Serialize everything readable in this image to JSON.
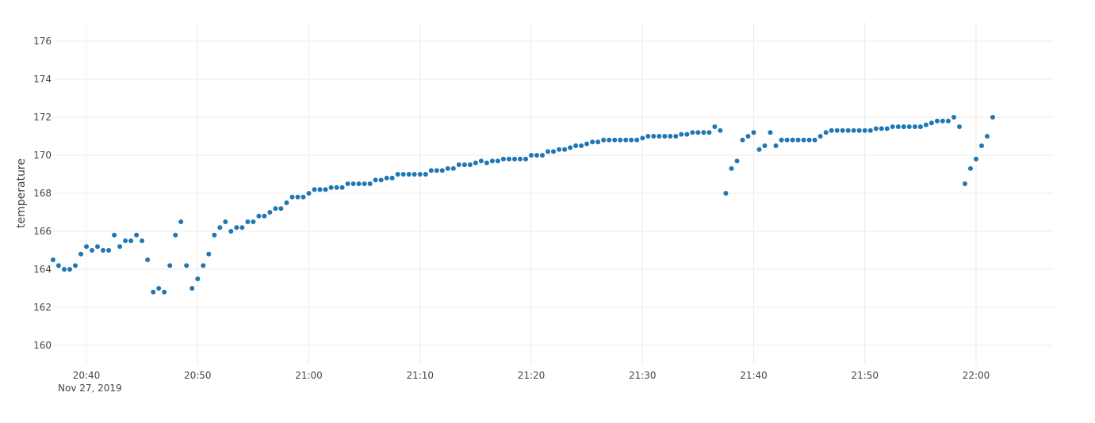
{
  "chart_data": {
    "type": "scatter",
    "title": "",
    "xlabel": "",
    "ylabel": "temperature",
    "x_unit": "minutes",
    "x_date_label": "Nov 27, 2019",
    "xlim": [
      "20:36",
      "22:07"
    ],
    "ylim": [
      159,
      177
    ],
    "x_ticks": [
      "20:40",
      "20:50",
      "21:00",
      "21:10",
      "21:20",
      "21:30",
      "21:40",
      "21:50",
      "22:00"
    ],
    "y_ticks": [
      160,
      162,
      164,
      166,
      168,
      170,
      172,
      174,
      176
    ],
    "grid": true,
    "legend": "none",
    "marker_color": "#1f77b4",
    "series": [
      {
        "x": [
          "20:37:00",
          "20:37:30",
          "20:38:00",
          "20:38:30",
          "20:39:00",
          "20:39:30",
          "20:40:00",
          "20:40:30",
          "20:41:00",
          "20:41:30",
          "20:42:00",
          "20:42:30",
          "20:43:00",
          "20:43:30",
          "20:44:00",
          "20:44:30",
          "20:45:00",
          "20:45:30",
          "20:46:00",
          "20:46:30",
          "20:47:00",
          "20:47:30",
          "20:48:00",
          "20:48:30",
          "20:49:00",
          "20:49:30",
          "20:50:00",
          "20:50:30",
          "20:51:00",
          "20:51:30",
          "20:52:00",
          "20:52:30",
          "20:53:00",
          "20:53:30",
          "20:54:00",
          "20:54:30",
          "20:55:00",
          "20:55:30",
          "20:56:00",
          "20:56:30",
          "20:57:00",
          "20:57:30",
          "20:58:00",
          "20:58:30",
          "20:59:00",
          "20:59:30",
          "21:00:00",
          "21:00:30",
          "21:01:00",
          "21:01:30",
          "21:02:00",
          "21:02:30",
          "21:03:00",
          "21:03:30",
          "21:04:00",
          "21:04:30",
          "21:05:00",
          "21:05:30",
          "21:06:00",
          "21:06:30",
          "21:07:00",
          "21:07:30",
          "21:08:00",
          "21:08:30",
          "21:09:00",
          "21:09:30",
          "21:10:00",
          "21:10:30",
          "21:11:00",
          "21:11:30",
          "21:12:00",
          "21:12:30",
          "21:13:00",
          "21:13:30",
          "21:14:00",
          "21:14:30",
          "21:15:00",
          "21:15:30",
          "21:16:00",
          "21:16:30",
          "21:17:00",
          "21:17:30",
          "21:18:00",
          "21:18:30",
          "21:19:00",
          "21:19:30",
          "21:20:00",
          "21:20:30",
          "21:21:00",
          "21:21:30",
          "21:22:00",
          "21:22:30",
          "21:23:00",
          "21:23:30",
          "21:24:00",
          "21:24:30",
          "21:25:00",
          "21:25:30",
          "21:26:00",
          "21:26:30",
          "21:27:00",
          "21:27:30",
          "21:28:00",
          "21:28:30",
          "21:29:00",
          "21:29:30",
          "21:30:00",
          "21:30:30",
          "21:31:00",
          "21:31:30",
          "21:32:00",
          "21:32:30",
          "21:33:00",
          "21:33:30",
          "21:34:00",
          "21:34:30",
          "21:35:00",
          "21:35:30",
          "21:36:00",
          "21:36:30",
          "21:37:00",
          "21:37:30",
          "21:38:00",
          "21:38:30",
          "21:39:00",
          "21:39:30",
          "21:40:00",
          "21:40:30",
          "21:41:00",
          "21:41:30",
          "21:42:00",
          "21:42:30",
          "21:43:00",
          "21:43:30",
          "21:44:00",
          "21:44:30",
          "21:45:00",
          "21:45:30",
          "21:46:00",
          "21:46:30",
          "21:47:00",
          "21:47:30",
          "21:48:00",
          "21:48:30",
          "21:49:00",
          "21:49:30",
          "21:50:00",
          "21:50:30",
          "21:51:00",
          "21:51:30",
          "21:52:00",
          "21:52:30",
          "21:53:00",
          "21:53:30",
          "21:54:00",
          "21:54:30",
          "21:55:00",
          "21:55:30",
          "21:56:00",
          "21:56:30",
          "21:57:00",
          "21:57:30",
          "21:58:00",
          "21:58:30",
          "21:59:00",
          "21:59:30",
          "22:00:00",
          "22:00:30",
          "22:01:00",
          "22:01:30"
        ],
        "y": [
          164.5,
          164.2,
          164.0,
          164.0,
          164.2,
          164.8,
          165.2,
          165.0,
          165.2,
          165.0,
          165.0,
          165.8,
          165.2,
          165.5,
          165.5,
          165.8,
          165.5,
          164.5,
          162.8,
          163.0,
          162.8,
          164.2,
          165.8,
          166.5,
          164.2,
          163.0,
          163.5,
          164.2,
          164.8,
          165.8,
          166.2,
          166.5,
          166.0,
          166.2,
          166.2,
          166.5,
          166.5,
          166.8,
          166.8,
          167.0,
          167.2,
          167.2,
          167.5,
          167.8,
          167.8,
          167.8,
          168.0,
          168.2,
          168.2,
          168.2,
          168.3,
          168.3,
          168.3,
          168.5,
          168.5,
          168.5,
          168.5,
          168.5,
          168.7,
          168.7,
          168.8,
          168.8,
          169.0,
          169.0,
          169.0,
          169.0,
          169.0,
          169.0,
          169.2,
          169.2,
          169.2,
          169.3,
          169.3,
          169.5,
          169.5,
          169.5,
          169.6,
          169.7,
          169.6,
          169.7,
          169.7,
          169.8,
          169.8,
          169.8,
          169.8,
          169.8,
          170.0,
          170.0,
          170.0,
          170.2,
          170.2,
          170.3,
          170.3,
          170.4,
          170.5,
          170.5,
          170.6,
          170.7,
          170.7,
          170.8,
          170.8,
          170.8,
          170.8,
          170.8,
          170.8,
          170.8,
          170.9,
          171.0,
          171.0,
          171.0,
          171.0,
          171.0,
          171.0,
          171.1,
          171.1,
          171.2,
          171.2,
          171.2,
          171.2,
          171.5,
          171.3,
          168.0,
          169.3,
          169.7,
          170.8,
          171.0,
          171.2,
          170.3,
          170.5,
          171.2,
          170.5,
          170.8,
          170.8,
          170.8,
          170.8,
          170.8,
          170.8,
          170.8,
          171.0,
          171.2,
          171.3,
          171.3,
          171.3,
          171.3,
          171.3,
          171.3,
          171.3,
          171.3,
          171.4,
          171.4,
          171.4,
          171.5,
          171.5,
          171.5,
          171.5,
          171.5,
          171.5,
          171.6,
          171.7,
          171.8,
          171.8,
          171.8,
          172.0,
          171.5,
          168.5,
          169.3,
          169.8,
          170.5,
          171.0,
          172.0
        ]
      }
    ]
  }
}
